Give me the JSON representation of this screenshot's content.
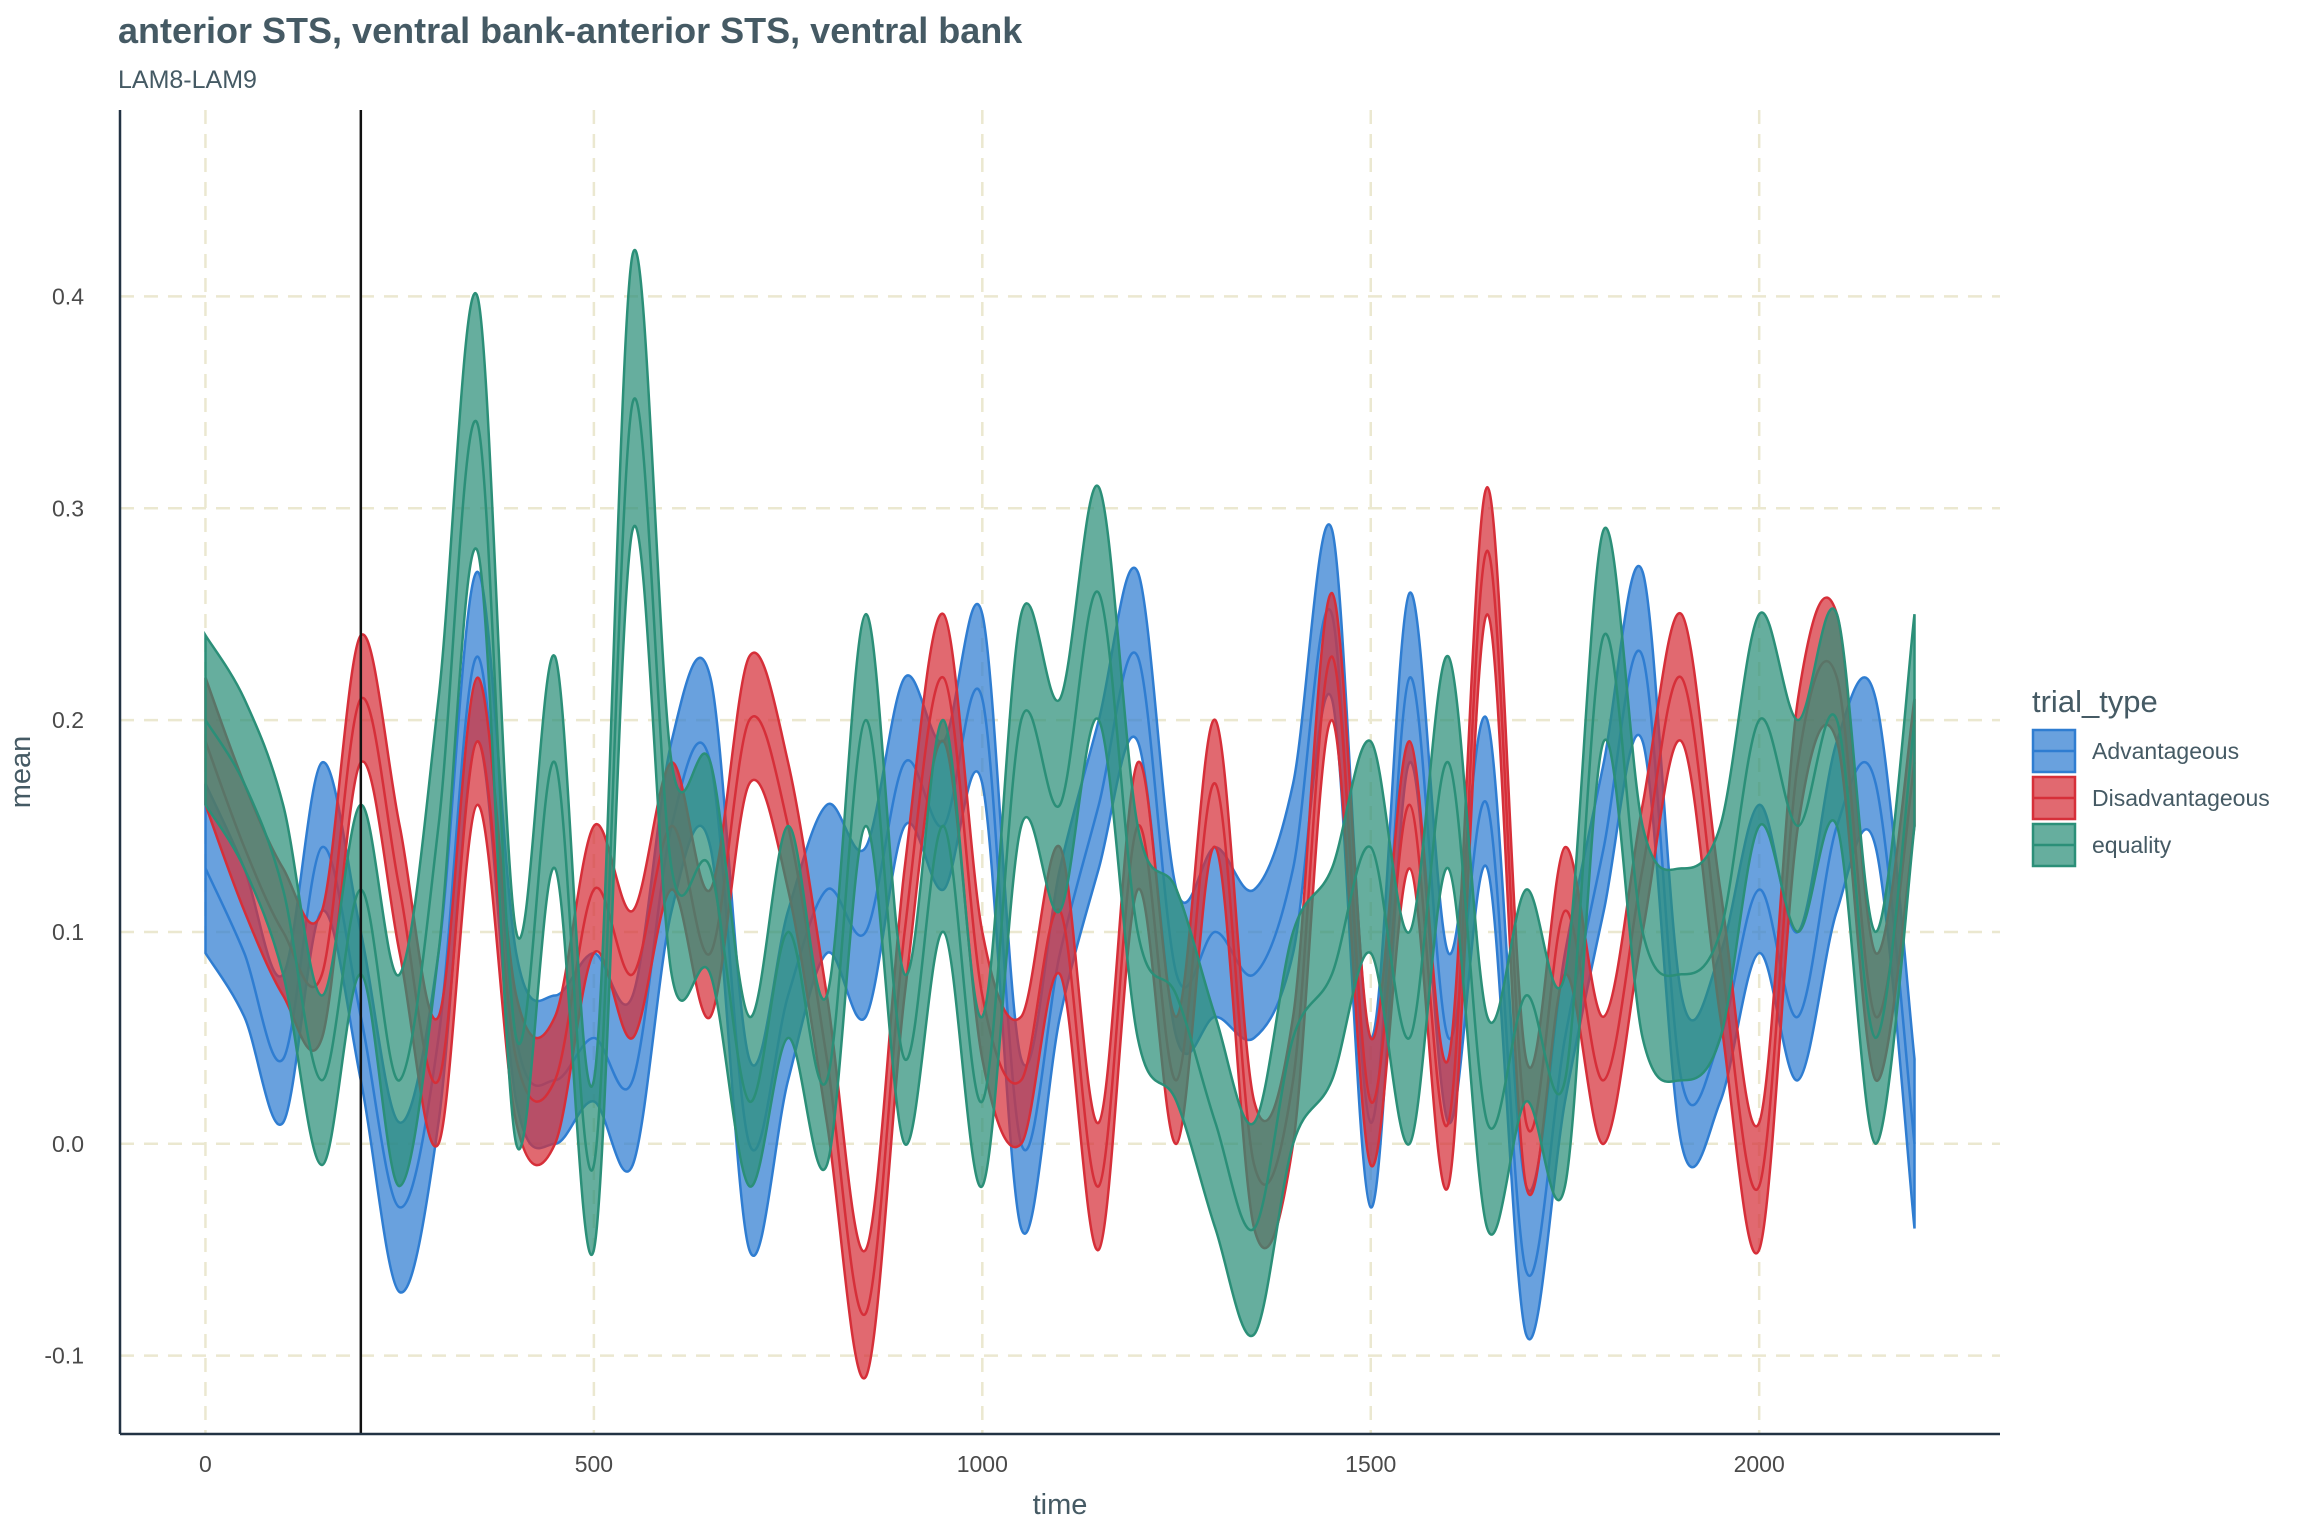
{
  "title": "anterior STS, ventral bank-anterior STS, ventral bank",
  "subtitle": "LAM8-LAM9",
  "colors": {
    "Advantageous": "#2f7dd1",
    "Disadvantageous": "#d62f39",
    "equality": "#2b8f78",
    "grid": "#ebe8d0",
    "axis": "#223344",
    "vline": "#111111"
  },
  "chart_data": {
    "type": "area",
    "xlabel": "time",
    "ylabel": "mean",
    "xlim": [
      -110,
      2310
    ],
    "ylim": [
      -0.137,
      0.488
    ],
    "x_ticks": [
      0,
      500,
      1000,
      1500,
      2000
    ],
    "x_tick_labels": [
      "0",
      "500",
      "1000",
      "1500",
      "2000"
    ],
    "y_ticks": [
      -0.1,
      0.0,
      0.1,
      0.2,
      0.3,
      0.4
    ],
    "y_tick_labels": [
      "-0.1",
      "0.0",
      "0.1",
      "0.2",
      "0.3",
      "0.4"
    ],
    "grid": true,
    "reference_line_x": 200,
    "legend": {
      "title": "trial_type",
      "position": "right"
    },
    "series": [
      {
        "name": "Advantageous",
        "x": [
          0,
          50,
          100,
          150,
          200,
          250,
          300,
          350,
          400,
          450,
          500,
          550,
          600,
          650,
          700,
          750,
          800,
          850,
          900,
          950,
          1000,
          1050,
          1100,
          1150,
          1200,
          1250,
          1300,
          1350,
          1400,
          1450,
          1500,
          1550,
          1600,
          1650,
          1700,
          1750,
          1800,
          1850,
          1900,
          1950,
          2000,
          2050,
          2100,
          2150,
          2200
        ],
        "mean": [
          0.13,
          0.09,
          0.04,
          0.14,
          0.06,
          -0.03,
          0.05,
          0.23,
          0.05,
          0.03,
          0.05,
          0.03,
          0.15,
          0.18,
          0.0,
          0.07,
          0.12,
          0.1,
          0.18,
          0.15,
          0.21,
          0.0,
          0.09,
          0.16,
          0.23,
          0.08,
          0.1,
          0.08,
          0.13,
          0.25,
          0.01,
          0.22,
          0.05,
          0.16,
          -0.06,
          0.05,
          0.14,
          0.23,
          0.03,
          0.05,
          0.12,
          0.06,
          0.15,
          0.17,
          0.0
        ],
        "lower": [
          0.09,
          0.06,
          0.01,
          0.11,
          0.03,
          -0.07,
          0.01,
          0.19,
          0.02,
          0.0,
          0.02,
          -0.01,
          0.11,
          0.14,
          -0.05,
          0.03,
          0.09,
          0.06,
          0.15,
          0.12,
          0.17,
          -0.04,
          0.06,
          0.13,
          0.19,
          0.05,
          0.06,
          0.05,
          0.09,
          0.21,
          -0.03,
          0.18,
          0.01,
          0.13,
          -0.09,
          0.02,
          0.11,
          0.19,
          0.0,
          0.02,
          0.09,
          0.03,
          0.11,
          0.14,
          -0.04
        ],
        "upper": [
          0.17,
          0.13,
          0.08,
          0.18,
          0.1,
          0.01,
          0.09,
          0.27,
          0.09,
          0.07,
          0.09,
          0.07,
          0.19,
          0.22,
          0.04,
          0.11,
          0.16,
          0.14,
          0.22,
          0.19,
          0.25,
          0.04,
          0.13,
          0.2,
          0.27,
          0.12,
          0.14,
          0.12,
          0.17,
          0.29,
          0.05,
          0.26,
          0.09,
          0.2,
          -0.02,
          0.09,
          0.18,
          0.27,
          0.07,
          0.09,
          0.16,
          0.1,
          0.19,
          0.21,
          0.04
        ]
      },
      {
        "name": "Disadvantageous",
        "x": [
          0,
          50,
          100,
          150,
          200,
          250,
          300,
          350,
          400,
          450,
          500,
          550,
          600,
          650,
          700,
          750,
          800,
          850,
          900,
          950,
          1000,
          1050,
          1100,
          1150,
          1200,
          1250,
          1300,
          1350,
          1400,
          1450,
          1500,
          1550,
          1600,
          1650,
          1700,
          1750,
          1800,
          1850,
          1900,
          1950,
          2000,
          2050,
          2100,
          2150,
          2200
        ],
        "mean": [
          0.19,
          0.14,
          0.1,
          0.08,
          0.21,
          0.12,
          0.03,
          0.19,
          0.04,
          0.03,
          0.12,
          0.08,
          0.15,
          0.09,
          0.2,
          0.15,
          0.04,
          -0.08,
          0.1,
          0.22,
          0.07,
          0.03,
          0.11,
          -0.02,
          0.15,
          0.03,
          0.17,
          -0.01,
          0.03,
          0.23,
          0.02,
          0.16,
          0.01,
          0.28,
          0.01,
          0.11,
          0.03,
          0.13,
          0.22,
          0.09,
          -0.02,
          0.18,
          0.22,
          0.06,
          0.18
        ],
        "lower": [
          0.16,
          0.11,
          0.07,
          0.05,
          0.18,
          0.09,
          0.0,
          0.16,
          0.01,
          0.0,
          0.09,
          0.05,
          0.12,
          0.06,
          0.17,
          0.12,
          0.01,
          -0.11,
          0.07,
          0.19,
          0.04,
          0.0,
          0.08,
          -0.05,
          0.12,
          0.0,
          0.14,
          -0.04,
          0.0,
          0.2,
          -0.01,
          0.13,
          -0.02,
          0.25,
          -0.02,
          0.08,
          0.0,
          0.1,
          0.19,
          0.06,
          -0.05,
          0.15,
          0.19,
          0.03,
          0.15
        ],
        "upper": [
          0.22,
          0.17,
          0.13,
          0.11,
          0.24,
          0.15,
          0.06,
          0.22,
          0.07,
          0.06,
          0.15,
          0.11,
          0.18,
          0.12,
          0.23,
          0.18,
          0.07,
          -0.05,
          0.13,
          0.25,
          0.1,
          0.06,
          0.14,
          0.01,
          0.18,
          0.06,
          0.2,
          0.02,
          0.06,
          0.26,
          0.05,
          0.19,
          0.04,
          0.31,
          0.04,
          0.14,
          0.06,
          0.16,
          0.25,
          0.12,
          0.01,
          0.21,
          0.25,
          0.09,
          0.21
        ]
      },
      {
        "name": "equality",
        "x": [
          0,
          50,
          100,
          150,
          200,
          250,
          300,
          350,
          400,
          450,
          500,
          550,
          600,
          650,
          700,
          750,
          800,
          850,
          900,
          950,
          1000,
          1050,
          1100,
          1150,
          1200,
          1250,
          1300,
          1350,
          1400,
          1450,
          1500,
          1550,
          1600,
          1650,
          1700,
          1750,
          1800,
          1850,
          1900,
          1950,
          2000,
          2050,
          2100,
          2150,
          2200
        ],
        "mean": [
          0.2,
          0.17,
          0.12,
          0.03,
          0.12,
          0.03,
          0.15,
          0.34,
          0.05,
          0.18,
          -0.01,
          0.35,
          0.13,
          0.13,
          0.02,
          0.1,
          0.03,
          0.2,
          0.04,
          0.15,
          0.02,
          0.2,
          0.16,
          0.26,
          0.1,
          0.07,
          0.01,
          -0.04,
          0.05,
          0.08,
          0.14,
          0.05,
          0.18,
          0.01,
          0.07,
          0.03,
          0.24,
          0.1,
          0.08,
          0.1,
          0.2,
          0.15,
          0.2,
          0.05,
          0.2
        ],
        "lower": [
          0.16,
          0.13,
          0.08,
          -0.01,
          0.08,
          -0.02,
          0.09,
          0.28,
          0.0,
          0.13,
          -0.05,
          0.29,
          0.08,
          0.08,
          -0.02,
          0.05,
          -0.01,
          0.15,
          0.0,
          0.1,
          -0.02,
          0.15,
          0.11,
          0.2,
          0.05,
          0.02,
          -0.04,
          -0.09,
          0.0,
          0.03,
          0.09,
          0.0,
          0.13,
          -0.04,
          0.02,
          -0.02,
          0.19,
          0.05,
          0.03,
          0.05,
          0.15,
          0.1,
          0.15,
          0.0,
          0.15
        ],
        "upper": [
          0.24,
          0.21,
          0.16,
          0.07,
          0.16,
          0.08,
          0.21,
          0.4,
          0.1,
          0.23,
          0.03,
          0.42,
          0.18,
          0.18,
          0.06,
          0.15,
          0.07,
          0.25,
          0.08,
          0.2,
          0.06,
          0.25,
          0.21,
          0.31,
          0.15,
          0.12,
          0.06,
          0.01,
          0.1,
          0.13,
          0.19,
          0.1,
          0.23,
          0.06,
          0.12,
          0.08,
          0.29,
          0.15,
          0.13,
          0.15,
          0.25,
          0.2,
          0.25,
          0.1,
          0.25
        ]
      }
    ]
  }
}
